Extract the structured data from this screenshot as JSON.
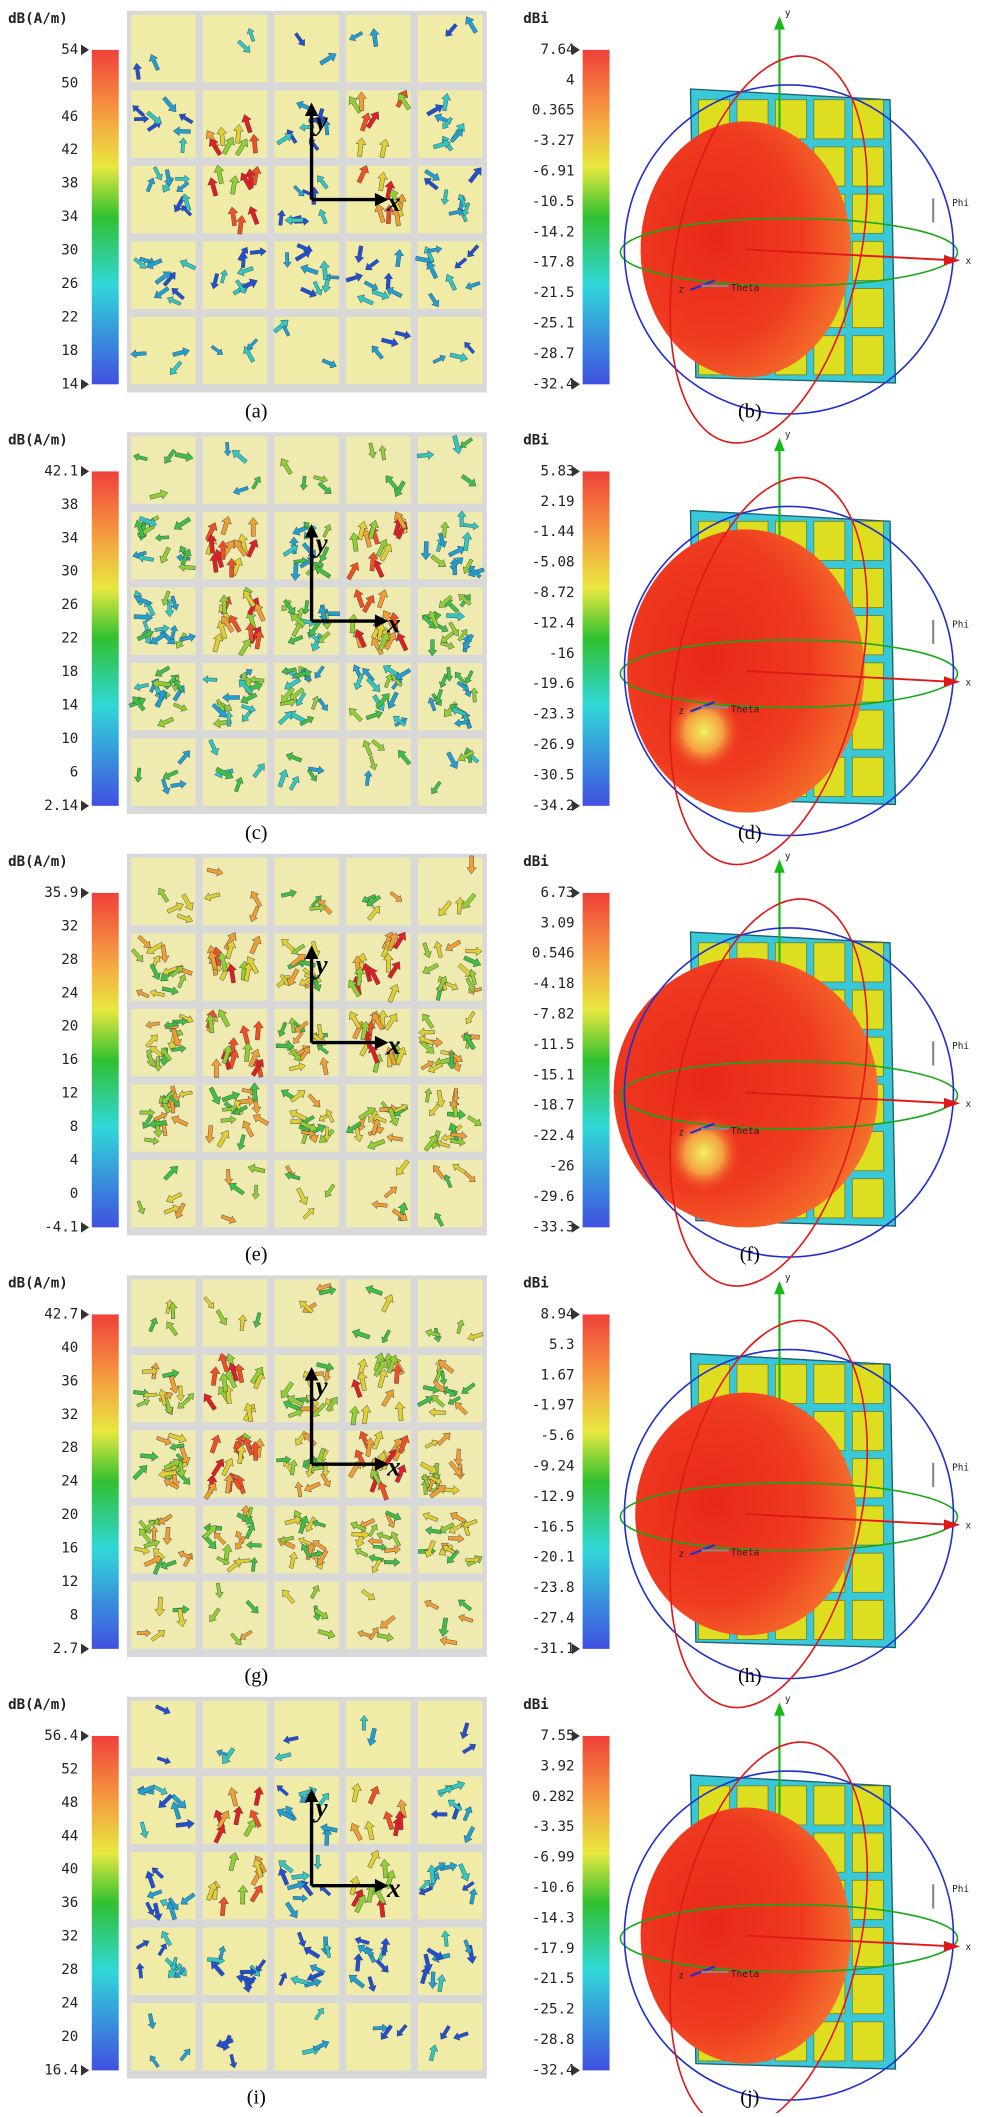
{
  "panels": [
    {
      "field": {
        "unit": "dB(A/m)",
        "ticks": [
          54,
          50,
          46,
          42,
          38,
          34,
          30,
          26,
          22,
          18,
          14
        ],
        "axis_x": "x",
        "axis_y": "y",
        "caption": "(a)"
      },
      "pattern": {
        "unit": "dBi",
        "ticks": [
          7.64,
          4,
          0.365,
          -3.27,
          -6.91,
          -10.5,
          -14.2,
          -17.8,
          -21.5,
          -25.1,
          -28.7,
          -32.4
        ],
        "x": "x",
        "y": "y",
        "z": "z",
        "phi": "Phi",
        "theta": "Theta",
        "caption": "(b)"
      }
    },
    {
      "field": {
        "unit": "dB(A/m)",
        "ticks": [
          42.1,
          38,
          34,
          30,
          26,
          22,
          18,
          14,
          10,
          6,
          2.14
        ],
        "axis_x": "x",
        "axis_y": "y",
        "caption": "(c)"
      },
      "pattern": {
        "unit": "dBi",
        "ticks": [
          5.83,
          2.19,
          -1.44,
          -5.08,
          -8.72,
          -12.4,
          -16,
          -19.6,
          -23.3,
          -26.9,
          -30.5,
          -34.2
        ],
        "x": "x",
        "y": "y",
        "z": "z",
        "phi": "Phi",
        "theta": "Theta",
        "caption": "(d)"
      }
    },
    {
      "field": {
        "unit": "dB(A/m)",
        "ticks": [
          35.9,
          32,
          28,
          24,
          20,
          16,
          12,
          8,
          4,
          0,
          -4.1
        ],
        "axis_x": "x",
        "axis_y": "y",
        "caption": "(e)"
      },
      "pattern": {
        "unit": "dBi",
        "ticks": [
          6.73,
          3.09,
          0.546,
          -4.18,
          -7.82,
          -11.5,
          -15.1,
          -18.7,
          -22.4,
          -26,
          -29.6,
          -33.3
        ],
        "x": "x",
        "y": "y",
        "z": "z",
        "phi": "Phi",
        "theta": "Theta",
        "caption": "(f)"
      }
    },
    {
      "field": {
        "unit": "dB(A/m)",
        "ticks": [
          42.7,
          40,
          36,
          32,
          28,
          24,
          20,
          16,
          12,
          8,
          2.7
        ],
        "axis_x": "x",
        "axis_y": "y",
        "caption": "(g)"
      },
      "pattern": {
        "unit": "dBi",
        "ticks": [
          8.94,
          5.3,
          1.67,
          -1.97,
          -5.6,
          -9.24,
          -12.9,
          -16.5,
          -20.1,
          -23.8,
          -27.4,
          -31.1
        ],
        "x": "x",
        "y": "y",
        "z": "z",
        "phi": "Phi",
        "theta": "Theta",
        "caption": "(h)"
      }
    },
    {
      "field": {
        "unit": "dB(A/m)",
        "ticks": [
          56.4,
          52,
          48,
          44,
          40,
          36,
          32,
          28,
          24,
          20,
          16.4
        ],
        "axis_x": "x",
        "axis_y": "y",
        "caption": "(i)"
      },
      "pattern": {
        "unit": "dBi",
        "ticks": [
          7.55,
          3.92,
          0.282,
          -3.35,
          -6.99,
          -10.6,
          -14.3,
          -17.9,
          -21.5,
          -25.2,
          -28.8,
          -32.4
        ],
        "x": "x",
        "y": "y",
        "z": "z",
        "phi": "Phi",
        "theta": "Theta",
        "caption": "(j)"
      }
    }
  ]
}
